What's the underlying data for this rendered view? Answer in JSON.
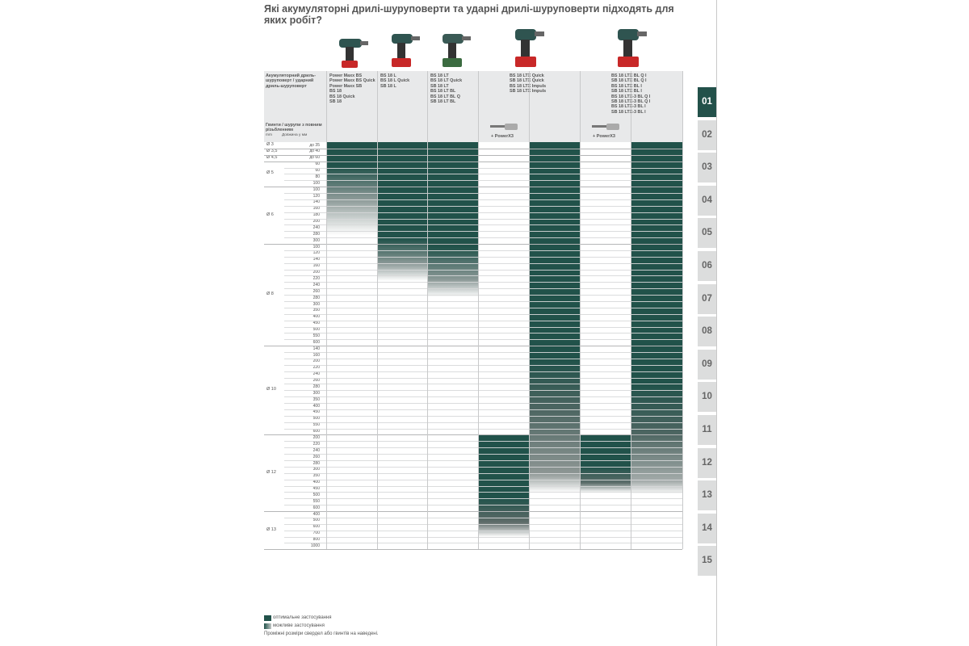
{
  "page": {
    "title": "Які акумуляторні дрилі-шуруповерти та ударні дрилі-шуруповерти підходять для яких робіт?"
  },
  "table": {
    "header_left": "Акумуляторний дриль-шуруповерт / ударний дриль-шуруповерт",
    "subheader": "Гвинти / шурупи з повним різьбленням",
    "unit_mm": "mm",
    "unit_length": "Довжина у мм",
    "columns": [
      {
        "models": "Power Maxx BS\nPower Maxx BS Quick\nPower Maxx SB\nBS 18\nBS 18 Quick\nSB 18"
      },
      {
        "models": "BS 18 L\nBS 18 L Quick\nSB 18 L"
      },
      {
        "models": "BS 18 LT\nBS 18 LT Quick\nSB 18 LT\nBS 18 LT BL\nBS 18 LT BL Q\nSB 18 LT BL"
      },
      {
        "models": "BS 18 LTX Quick\nSB 18 LTX Quick\nBS 18 LTX Impuls\nSB 18 LTX Impuls",
        "accessory": "+ PowerX3"
      },
      {
        "models": "BS 18 LTX BL Q I\nSB 18 LTX BL Q I\nBS 18 LTX BL I\nSB 18 LTX BL I\nBS 18 LTX-3 BL Q I\nSB 18 LTX-3 BL Q I\nBS 18 LTX-3 BL I\nSB 18 LTX-3 BL I",
        "accessory": "+ PowerX3"
      }
    ],
    "groups": [
      {
        "diameter": "Ø 3",
        "lengths": [
          "до 35"
        ]
      },
      {
        "diameter": "Ø 3,5",
        "lengths": [
          "до 40"
        ]
      },
      {
        "diameter": "Ø 4,5",
        "lengths": [
          "до 60"
        ]
      },
      {
        "diameter": "Ø 5",
        "lengths": [
          "60",
          "60",
          "80",
          "100"
        ]
      },
      {
        "diameter": "Ø 6",
        "lengths": [
          "100",
          "120",
          "140",
          "160",
          "180",
          "200",
          "240",
          "280",
          "300"
        ]
      },
      {
        "diameter": "Ø 8",
        "lengths": [
          "100",
          "120",
          "140",
          "160",
          "200",
          "220",
          "240",
          "260",
          "280",
          "300",
          "350",
          "400",
          "450",
          "500",
          "550",
          "600"
        ]
      },
      {
        "diameter": "Ø 10",
        "lengths": [
          "140",
          "160",
          "200",
          "220",
          "240",
          "260",
          "280",
          "300",
          "350",
          "400",
          "450",
          "500",
          "550",
          "600"
        ]
      },
      {
        "diameter": "Ø 12",
        "lengths": [
          "200",
          "220",
          "240",
          "260",
          "280",
          "300",
          "350",
          "400",
          "450",
          "500",
          "550",
          "600"
        ]
      },
      {
        "diameter": "Ø 13",
        "lengths": [
          "400",
          "500",
          "600",
          "700",
          "800",
          "1000"
        ]
      }
    ]
  },
  "legend": {
    "optimal": "оптимальне застосування",
    "possible": "можливе застосування",
    "note": "Проміжні розміри свердел або гвинтів на наведені."
  },
  "tabs": [
    "01",
    "02",
    "03",
    "04",
    "05",
    "06",
    "07",
    "08",
    "09",
    "10",
    "11",
    "12",
    "13",
    "14",
    "15"
  ],
  "colors": {
    "optimal": "#21524a",
    "possible": "#5f6c6a",
    "header_bg": "#e8e9ea",
    "tab_bg": "#dcdddd"
  }
}
